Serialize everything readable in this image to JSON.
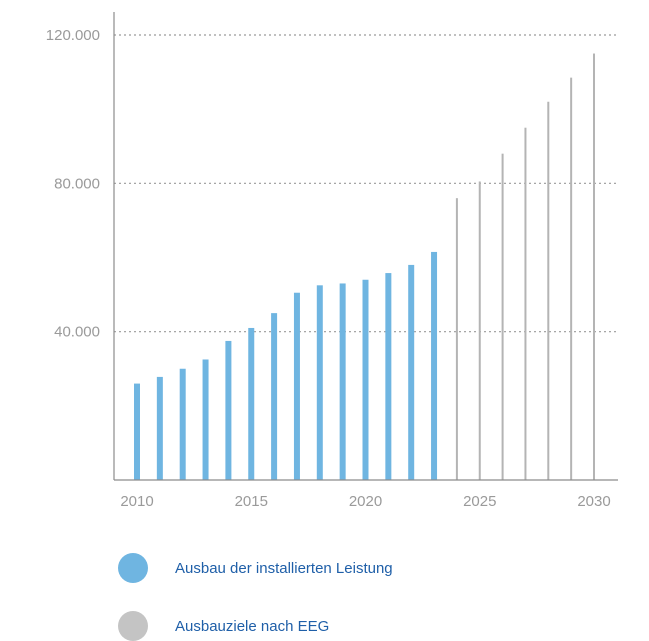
{
  "chart_data": {
    "type": "bar",
    "x": [
      2010,
      2011,
      2012,
      2013,
      2014,
      2015,
      2016,
      2017,
      2018,
      2019,
      2020,
      2021,
      2022,
      2023,
      2024,
      2025,
      2026,
      2027,
      2028,
      2029,
      2030
    ],
    "series": [
      {
        "name": "Ausbau der installierten Leistung",
        "color": "#6fb5e1",
        "x": [
          2010,
          2011,
          2012,
          2013,
          2014,
          2015,
          2016,
          2017,
          2018,
          2019,
          2020,
          2021,
          2022,
          2023
        ],
        "values": [
          26000,
          27800,
          30000,
          32500,
          37500,
          41000,
          45000,
          50500,
          52500,
          53000,
          54000,
          55800,
          58000,
          61500
        ]
      },
      {
        "name": "Ausbauziele nach EEG",
        "color": "#b4b4b4",
        "x": [
          2024,
          2025,
          2026,
          2027,
          2028,
          2029,
          2030
        ],
        "values": [
          76000,
          80500,
          88000,
          95000,
          102000,
          108500,
          115000
        ]
      }
    ],
    "y_ticks": [
      {
        "value": 40000,
        "label": "40.000"
      },
      {
        "value": 80000,
        "label": "80.000"
      },
      {
        "value": 120000,
        "label": "120.000"
      }
    ],
    "x_ticks": [
      {
        "value": 2010,
        "label": "2010"
      },
      {
        "value": 2015,
        "label": "2015"
      },
      {
        "value": 2020,
        "label": "2020"
      },
      {
        "value": 2025,
        "label": "2025"
      },
      {
        "value": 2030,
        "label": "2030"
      }
    ],
    "ylim": [
      0,
      120000
    ],
    "grid": true,
    "legend_position": "bottom-left",
    "axis_color": "#8c8c8c",
    "grid_color": "#9a9a9a"
  },
  "legend": {
    "items": [
      {
        "label": "Ausbau der installierten Leistung",
        "color": "#6fb5e1"
      },
      {
        "label": "Ausbauziele nach EEG",
        "color": "#c4c4c4"
      }
    ]
  }
}
